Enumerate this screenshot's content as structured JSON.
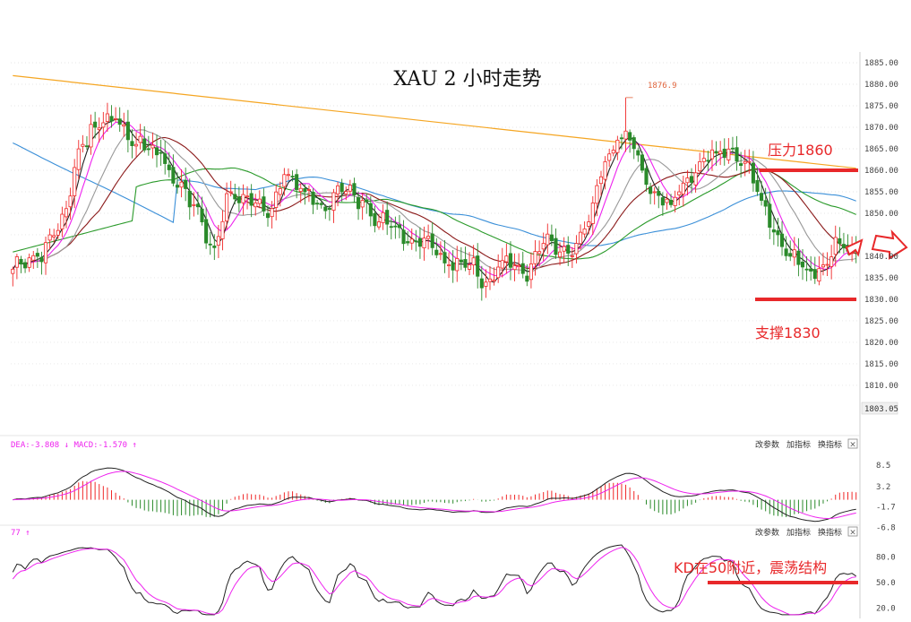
{
  "chart_data": [
    {
      "type": "candlestick",
      "title": "XAU 2 小时走势",
      "ylim": [
        1803.05,
        1886
      ],
      "y_ticks": [
        1885,
        1880,
        1875,
        1870,
        1865,
        1860,
        1855,
        1850,
        1845,
        1840,
        1835,
        1830,
        1825,
        1820,
        1815,
        1810
      ],
      "y_tick_labels": [
        "1885.00",
        "1880.00",
        "1875.00",
        "1870.00",
        "1865.00",
        "1860.00",
        "1855.00",
        "1850.00",
        "",
        "1840.00",
        "1835.00",
        "1830.00",
        "1825.00",
        "1820.00",
        "1815.00",
        "1810.00"
      ],
      "current_price_label": "1803.05",
      "high_marker_label": "1876.9",
      "high_marker_value": 1876.9,
      "colors": {
        "up": "#f02828",
        "down": "#2a8a2a",
        "ma5": "#222222",
        "ma10": "#ee22ee",
        "ma20": "#999999",
        "ma30": "#8b1a1a",
        "ma60": "#2a9a2a",
        "ma120": "#3a8fd8",
        "ma250": "#f5a623",
        "annotation": "#e8282a"
      },
      "anchor_closes": [
        [
          0,
          1837
        ],
        [
          6,
          1840
        ],
        [
          11,
          1846
        ],
        [
          17,
          1866
        ],
        [
          20,
          1870
        ],
        [
          25,
          1872
        ],
        [
          30,
          1866
        ],
        [
          33,
          1865
        ],
        [
          36,
          1864
        ],
        [
          39,
          1857
        ],
        [
          44,
          1852
        ],
        [
          49,
          1842
        ],
        [
          53,
          1855
        ],
        [
          57,
          1854
        ],
        [
          62,
          1849
        ],
        [
          66,
          1859
        ],
        [
          71,
          1855
        ],
        [
          75,
          1852
        ],
        [
          80,
          1855
        ],
        [
          85,
          1853
        ],
        [
          89,
          1848
        ],
        [
          93,
          1847
        ],
        [
          97,
          1844
        ],
        [
          102,
          1842
        ],
        [
          106,
          1838
        ],
        [
          111,
          1838
        ],
        [
          115,
          1834
        ],
        [
          119,
          1839
        ],
        [
          124,
          1836
        ],
        [
          129,
          1843
        ],
        [
          133,
          1841
        ],
        [
          137,
          1843
        ],
        [
          140,
          1848
        ],
        [
          144,
          1862
        ],
        [
          147,
          1867
        ],
        [
          150,
          1867
        ],
        [
          153,
          1860
        ],
        [
          156,
          1855
        ],
        [
          160,
          1852
        ],
        [
          163,
          1857
        ],
        [
          167,
          1862
        ],
        [
          171,
          1864
        ],
        [
          175,
          1865
        ],
        [
          178,
          1862
        ],
        [
          182,
          1853
        ],
        [
          186,
          1845
        ],
        [
          189,
          1840
        ],
        [
          193,
          1837
        ],
        [
          197,
          1838
        ],
        [
          201,
          1843
        ],
        [
          205,
          1841
        ]
      ],
      "annotations": [
        {
          "text": "压力1860",
          "value": 1860
        },
        {
          "text": "支撑1830",
          "value": 1830
        }
      ]
    },
    {
      "type": "line",
      "indicator": "MACD",
      "header_text": "DEA:-3.808 ↓ MACD:-1.570 ↑",
      "y_ticks": [
        8.5,
        3.2,
        -1.7,
        -6.8
      ],
      "y_tick_labels": [
        "8.5",
        "3.2",
        "-1.7",
        "-6.8"
      ],
      "ylim": [
        -7.5,
        9.5
      ],
      "controls": [
        "改参数",
        "加指标",
        "换指标",
        "×"
      ]
    },
    {
      "type": "line",
      "indicator": "KD",
      "header_text": "77 ↑",
      "y_ticks": [
        80,
        50,
        20
      ],
      "y_tick_labels": [
        "80.0",
        "50.0",
        "20.0"
      ],
      "ylim": [
        12,
        100
      ],
      "controls": [
        "改参数",
        "加指标",
        "换指标",
        "×"
      ],
      "annotations": [
        {
          "text": "KD在50附近，震荡结构",
          "value": 50
        }
      ]
    }
  ]
}
